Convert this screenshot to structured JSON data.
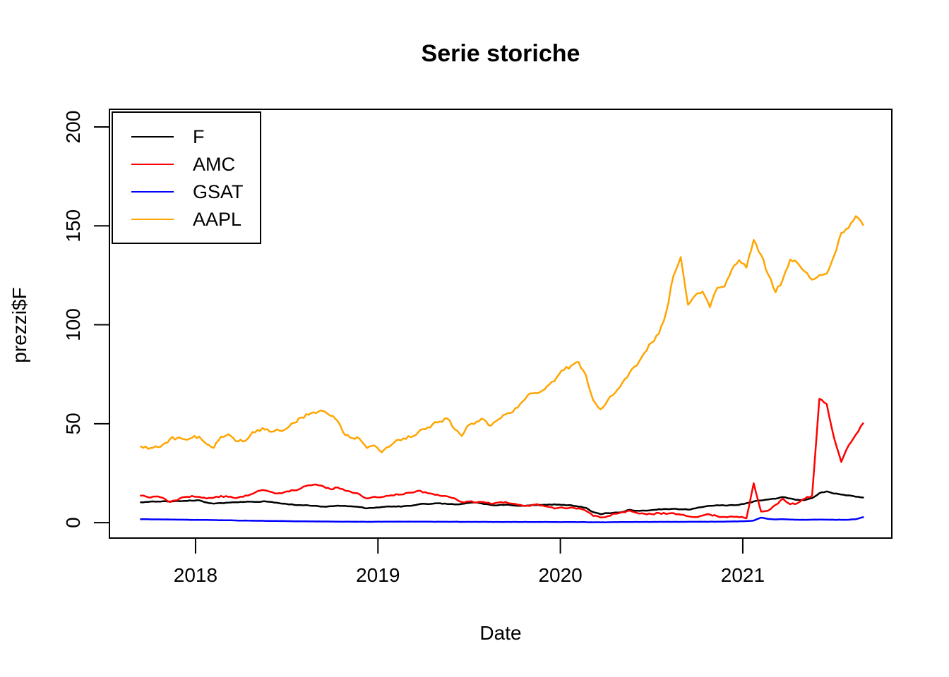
{
  "chart_data": {
    "type": "line",
    "title": "Serie storiche",
    "xlabel": "Date",
    "ylabel": "prezzi$F",
    "grid": false,
    "legend_position": "top-left",
    "x_ticks": [
      "2018",
      "2019",
      "2020",
      "2021"
    ],
    "x_tick_values": [
      2018,
      2019,
      2020,
      2021
    ],
    "y_ticks": [
      "0",
      "50",
      "100",
      "150",
      "200"
    ],
    "y_tick_values": [
      0,
      50,
      100,
      150,
      200
    ],
    "xlim": [
      2017.528,
      2021.817
    ],
    "ylim": [
      -7.8,
      208.9
    ],
    "x_start": 2017.7,
    "x_step": 0.04,
    "series": [
      {
        "name": "F",
        "color": "#000000",
        "jitter": 0.18,
        "values": [
          10.3,
          10.5,
          10.6,
          10.8,
          10.7,
          10.9,
          11.0,
          11.1,
          11.3,
          10.2,
          9.6,
          9.9,
          10.1,
          10.3,
          10.4,
          10.6,
          10.5,
          10.8,
          10.4,
          9.8,
          9.4,
          9.0,
          8.8,
          8.7,
          8.5,
          8.1,
          8.3,
          8.6,
          8.5,
          8.2,
          7.9,
          7.2,
          7.5,
          7.9,
          8.2,
          8.1,
          8.3,
          8.5,
          9.2,
          9.5,
          9.6,
          9.8,
          9.4,
          9.2,
          9.5,
          10.0,
          10.2,
          9.4,
          8.9,
          8.8,
          9.1,
          8.7,
          8.5,
          8.7,
          8.8,
          9.0,
          9.2,
          9.1,
          9.0,
          8.8,
          8.1,
          7.5,
          5.3,
          4.3,
          4.8,
          5.1,
          5.4,
          6.5,
          6.0,
          6.1,
          6.3,
          6.8,
          6.9,
          7.0,
          6.7,
          6.6,
          7.2,
          7.9,
          8.5,
          8.8,
          8.7,
          8.9,
          9.0,
          9.8,
          10.7,
          11.2,
          11.7,
          12.1,
          12.9,
          12.2,
          11.5,
          11.4,
          12.4,
          14.9,
          15.8,
          14.7,
          14.2,
          13.8,
          13.1,
          12.7
        ]
      },
      {
        "name": "AMC",
        "color": "#ff0000",
        "jitter": 0.4,
        "values": [
          13.7,
          12.8,
          13.2,
          12.6,
          10.4,
          11.3,
          12.9,
          13.5,
          13.0,
          12.2,
          12.6,
          13.5,
          13.0,
          12.4,
          13.0,
          14.2,
          15.9,
          16.3,
          15.4,
          14.9,
          15.8,
          16.3,
          17.4,
          18.9,
          19.3,
          18.4,
          16.9,
          17.8,
          16.2,
          15.1,
          14.3,
          12.2,
          13.1,
          12.9,
          13.6,
          14.4,
          14.3,
          15.2,
          16.1,
          15.4,
          14.5,
          13.6,
          13.3,
          12.3,
          10.4,
          10.7,
          10.1,
          10.4,
          9.5,
          10.1,
          10.5,
          9.6,
          9.0,
          8.6,
          9.1,
          8.7,
          7.9,
          7.3,
          7.4,
          7.7,
          7.2,
          6.0,
          3.4,
          2.6,
          3.3,
          4.5,
          5.3,
          6.1,
          4.9,
          4.5,
          4.3,
          4.9,
          4.4,
          4.8,
          4.0,
          3.2,
          2.8,
          3.6,
          4.1,
          3.2,
          2.9,
          3.1,
          2.7,
          2.2,
          19.9,
          5.6,
          6.1,
          9.0,
          12.1,
          9.3,
          9.8,
          12.1,
          13.7,
          62.6,
          60.0,
          43.0,
          30.7,
          39.0,
          44.5,
          50.2
        ]
      },
      {
        "name": "GSAT",
        "color": "#0000ff",
        "jitter": 0.05,
        "values": [
          1.75,
          1.7,
          1.66,
          1.62,
          1.58,
          1.52,
          1.47,
          1.43,
          1.4,
          1.36,
          1.3,
          1.24,
          1.18,
          1.1,
          1.04,
          0.98,
          0.93,
          0.88,
          0.83,
          0.79,
          0.74,
          0.7,
          0.66,
          0.62,
          0.59,
          0.56,
          0.53,
          0.5,
          0.48,
          0.45,
          0.43,
          0.4,
          0.42,
          0.44,
          0.46,
          0.48,
          0.5,
          0.49,
          0.47,
          0.46,
          0.45,
          0.44,
          0.43,
          0.42,
          0.41,
          0.4,
          0.39,
          0.38,
          0.37,
          0.36,
          0.35,
          0.35,
          0.34,
          0.33,
          0.33,
          0.32,
          0.32,
          0.31,
          0.3,
          0.29,
          0.27,
          0.24,
          0.2,
          0.18,
          0.22,
          0.26,
          0.3,
          0.33,
          0.35,
          0.36,
          0.37,
          0.38,
          0.39,
          0.4,
          0.41,
          0.42,
          0.43,
          0.44,
          0.46,
          0.48,
          0.52,
          0.58,
          0.65,
          0.78,
          1.05,
          2.55,
          1.85,
          1.62,
          1.7,
          1.55,
          1.48,
          1.44,
          1.5,
          1.58,
          1.52,
          1.46,
          1.44,
          1.48,
          1.75,
          2.75
        ]
      },
      {
        "name": "AAPL",
        "color": "#ffa500",
        "jitter": 0.9,
        "values": [
          38.5,
          37.3,
          38.6,
          39.4,
          42.3,
          42.8,
          42.1,
          42.8,
          43.5,
          39.7,
          37.8,
          43.5,
          44.7,
          41.2,
          41.0,
          44.1,
          46.9,
          47.0,
          45.9,
          46.5,
          47.6,
          50.4,
          53.2,
          54.5,
          55.3,
          56.4,
          54.0,
          51.3,
          44.2,
          42.7,
          42.3,
          37.7,
          39.0,
          35.5,
          38.3,
          41.6,
          42.6,
          43.2,
          45.6,
          47.2,
          49.8,
          51.1,
          52.6,
          47.2,
          43.8,
          49.5,
          51.0,
          52.2,
          49.0,
          52.2,
          54.7,
          56.0,
          60.0,
          64.3,
          65.5,
          66.7,
          69.9,
          73.4,
          77.2,
          79.4,
          81.2,
          74.5,
          61.9,
          57.3,
          61.9,
          65.6,
          70.7,
          75.9,
          79.5,
          85.7,
          91.0,
          95.5,
          106.3,
          124.8,
          134.2,
          110.1,
          115.0,
          116.8,
          108.9,
          118.7,
          119.3,
          127.9,
          132.7,
          128.9,
          142.9,
          135.4,
          125.3,
          116.4,
          123.0,
          133.0,
          131.2,
          126.9,
          122.8,
          125.1,
          125.9,
          134.8,
          146.4,
          148.9,
          154.9,
          150.4
        ]
      }
    ]
  }
}
